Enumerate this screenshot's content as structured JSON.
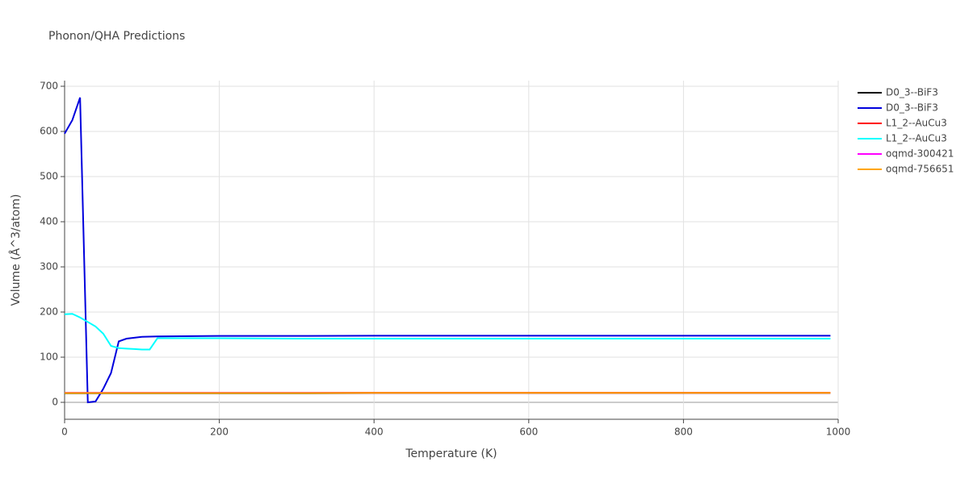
{
  "chart_data": {
    "type": "line",
    "title": "Phonon/QHA Predictions",
    "x_label": "Temperature (K)",
    "y_label": "Volume (Å^3/atom)",
    "x": [
      0,
      10,
      20,
      30,
      40,
      50,
      60,
      70,
      80,
      90,
      100,
      110,
      120,
      150,
      200,
      300,
      400,
      500,
      600,
      700,
      800,
      900,
      990
    ],
    "series": [
      {
        "name": "D0_3--BiF3",
        "color": "#000000",
        "values": [
          20,
          20,
          20,
          20,
          20,
          20,
          20,
          20,
          20,
          20,
          20,
          20,
          20,
          20,
          20,
          20,
          20.5,
          20.5,
          20.5,
          20.5,
          20.5,
          20.5,
          20.5
        ]
      },
      {
        "name": "D0_3--BiF3",
        "color": "#0000dd",
        "values": [
          595,
          625,
          675,
          0,
          2,
          30,
          65,
          135,
          141,
          143,
          145,
          145.5,
          146,
          146.5,
          147,
          147,
          147.5,
          147.5,
          147.5,
          147.5,
          147.5,
          147.5,
          147.5
        ]
      },
      {
        "name": "L1_2--AuCu3",
        "color": "#ff0000",
        "values": [
          21,
          21,
          21,
          21,
          21,
          21,
          21,
          21,
          21,
          21,
          21,
          21,
          21,
          21,
          21,
          21,
          21.5,
          21.5,
          21.5,
          21.5,
          21.5,
          21.5,
          21.5
        ]
      },
      {
        "name": "L1_2--AuCu3",
        "color": "#00ffff",
        "values": [
          195,
          196,
          188,
          178,
          168,
          152,
          125,
          120,
          119,
          118,
          117,
          117,
          142,
          142,
          142,
          141,
          141,
          141,
          141,
          141,
          141,
          141,
          141
        ]
      },
      {
        "name": "oqmd-300421",
        "color": "#ff00ff",
        "values": [
          21,
          21,
          21,
          21,
          21,
          21,
          21,
          21,
          21,
          21,
          21,
          21,
          21,
          21,
          21,
          21,
          21,
          21,
          21,
          21,
          21,
          21,
          21
        ]
      },
      {
        "name": "oqmd-756651",
        "color": "#ffa500",
        "values": [
          20.5,
          20.5,
          20.5,
          20.5,
          20.5,
          20.5,
          20.5,
          20.5,
          20.5,
          20.5,
          20.5,
          20.5,
          20.5,
          20.5,
          20.5,
          20.5,
          21,
          21,
          21,
          21,
          21,
          21,
          21
        ]
      }
    ],
    "xlim": [
      0,
      1000
    ],
    "xticks": [
      0,
      200,
      400,
      600,
      800,
      1000
    ],
    "ylim": [
      -37.5,
      712.5
    ],
    "yticks": [
      0,
      100,
      200,
      300,
      400,
      500,
      600,
      700
    ],
    "grid": true,
    "legend": "right"
  }
}
